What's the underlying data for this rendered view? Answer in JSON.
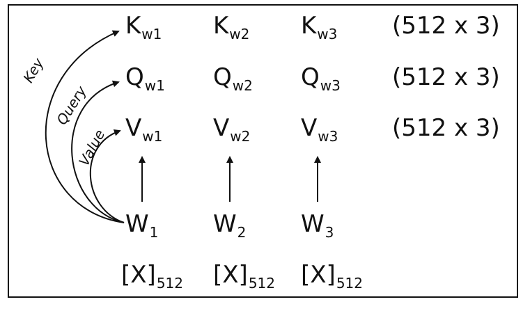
{
  "rows": {
    "key": {
      "cells": [
        {
          "base": "K",
          "sub": "w1"
        },
        {
          "base": "K",
          "sub": "w2"
        },
        {
          "base": "K",
          "sub": "w3"
        }
      ],
      "dimension": "(512 x 3)"
    },
    "query": {
      "cells": [
        {
          "base": "Q",
          "sub": "w1"
        },
        {
          "base": "Q",
          "sub": "w2"
        },
        {
          "base": "Q",
          "sub": "w3"
        }
      ],
      "dimension": "(512 x 3)"
    },
    "value": {
      "cells": [
        {
          "base": "V",
          "sub": "w1"
        },
        {
          "base": "V",
          "sub": "w2"
        },
        {
          "base": "V",
          "sub": "w3"
        }
      ],
      "dimension": "(512 x 3)"
    }
  },
  "words": [
    {
      "base": "W",
      "sub": "1"
    },
    {
      "base": "W",
      "sub": "2"
    },
    {
      "base": "W",
      "sub": "3"
    }
  ],
  "inputs": [
    {
      "base": "[X]",
      "sub": "512"
    },
    {
      "base": "[X]",
      "sub": "512"
    },
    {
      "base": "[X]",
      "sub": "512"
    }
  ],
  "curve_labels": {
    "key": "Key",
    "query": "Query",
    "value": "Value"
  },
  "colors": {
    "ink": "#111111",
    "background": "#ffffff"
  }
}
